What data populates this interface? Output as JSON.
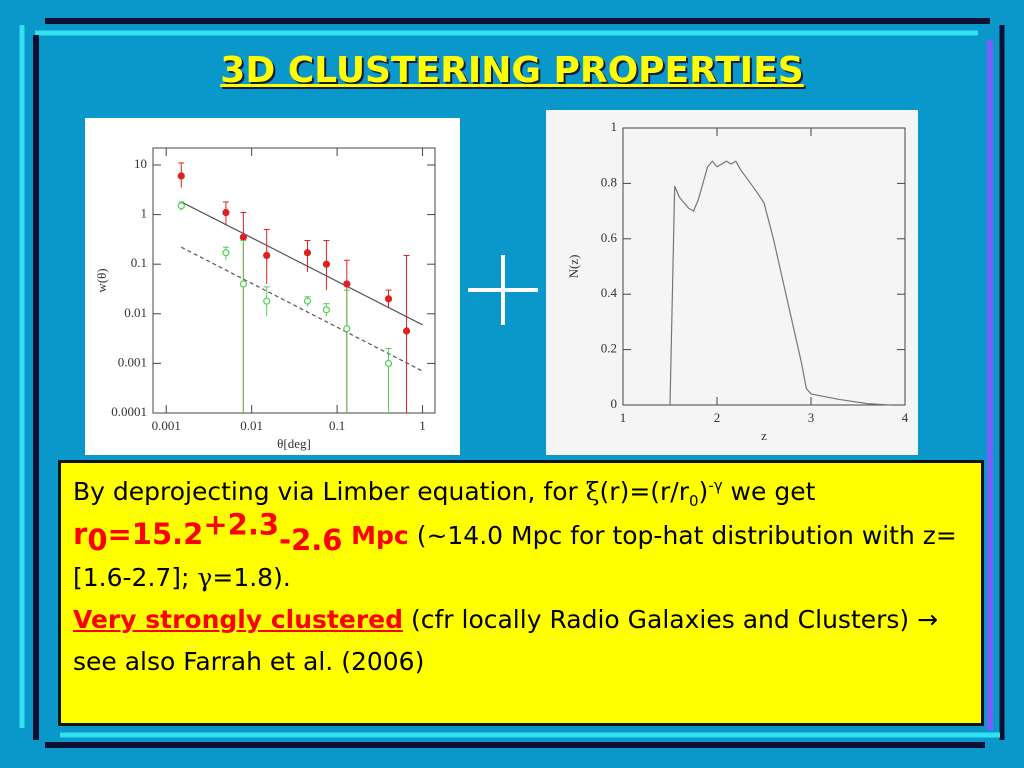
{
  "title": "3D CLUSTERING PROPERTIES",
  "chart_data": [
    {
      "type": "scatter",
      "xscale": "log",
      "yscale": "log",
      "xlabel": "θ[deg]",
      "ylabel": "w(θ)",
      "xlim": [
        0.0007,
        1.4
      ],
      "ylim": [
        0.0001,
        22
      ],
      "xticks": [
        0.001,
        0.01,
        0.1,
        1
      ],
      "yticks": [
        0.0001,
        0.001,
        0.01,
        0.1,
        1,
        10
      ],
      "series": [
        {
          "color": "#e02020",
          "marker": "filled",
          "x": [
            0.0015,
            0.005,
            0.008,
            0.015,
            0.045,
            0.075,
            0.13,
            0.4,
            0.65
          ],
          "values": [
            6,
            1.1,
            0.35,
            0.15,
            0.17,
            0.1,
            0.04,
            0.02,
            0.0045
          ],
          "lower": [
            3.5,
            0.6,
            0.0001,
            0.04,
            0.07,
            0.03,
            0.0001,
            0.013,
            0.0001
          ],
          "upper": [
            11,
            1.8,
            1.1,
            0.5,
            0.3,
            0.3,
            0.12,
            0.03,
            0.15
          ]
        },
        {
          "color": "#50d050",
          "marker": "open",
          "x": [
            0.0015,
            0.005,
            0.008,
            0.015,
            0.045,
            0.075,
            0.13,
            0.4
          ],
          "values": [
            1.5,
            0.17,
            0.04,
            0.018,
            0.018,
            0.012,
            0.005,
            0.001
          ],
          "lower": [
            1.2,
            0.12,
            0.0001,
            0.009,
            0.014,
            0.009,
            0.0001,
            0.0001
          ],
          "upper": [
            1.8,
            0.22,
            0.3,
            0.035,
            0.022,
            0.016,
            0.03,
            0.002
          ]
        }
      ],
      "lines": [
        {
          "color": "#555555",
          "dash": false,
          "x": [
            0.0015,
            1
          ],
          "values": [
            1.8,
            0.006
          ]
        },
        {
          "color": "#555555",
          "dash": true,
          "x": [
            0.0015,
            1
          ],
          "values": [
            0.22,
            0.0007
          ]
        }
      ]
    },
    {
      "type": "line",
      "xscale": "linear",
      "yscale": "linear",
      "xlabel": "z",
      "ylabel": "N(z)",
      "xlim": [
        1,
        4
      ],
      "ylim": [
        0,
        1
      ],
      "xticks": [
        1,
        2,
        3,
        4
      ],
      "yticks": [
        0,
        0.2,
        0.4,
        0.6,
        0.8,
        1
      ],
      "series": [
        {
          "color": "#777777",
          "x": [
            1.5,
            1.55,
            1.6,
            1.7,
            1.75,
            1.8,
            1.85,
            1.9,
            1.95,
            2.0,
            2.05,
            2.1,
            2.15,
            2.2,
            2.25,
            2.4,
            2.5,
            2.6,
            2.7,
            2.8,
            2.9,
            2.95,
            3.0,
            3.3,
            3.6,
            3.85
          ],
          "values": [
            0,
            0.79,
            0.75,
            0.71,
            0.7,
            0.74,
            0.8,
            0.86,
            0.88,
            0.86,
            0.87,
            0.88,
            0.87,
            0.88,
            0.85,
            0.78,
            0.73,
            0.6,
            0.45,
            0.3,
            0.15,
            0.06,
            0.04,
            0.02,
            0.005,
            0
          ]
        }
      ]
    }
  ],
  "text": {
    "segments": [
      "By deprojecting via Limber equation, for ",
      "ξ",
      "(r)=(r/r",
      "0",
      ")",
      "-γ",
      " we get ",
      "r",
      "0",
      "=15.2",
      "+2.3",
      "-2.6",
      " Mpc",
      " (~14.0 Mpc for top-hat distribution with z=[1.6-2.7]; ",
      "γ",
      "=1.8).",
      "Very strongly clustered",
      " (cfr locally Radio Galaxies and Clusters) ",
      "→",
      " see also Farrah et al. (2006)"
    ]
  }
}
